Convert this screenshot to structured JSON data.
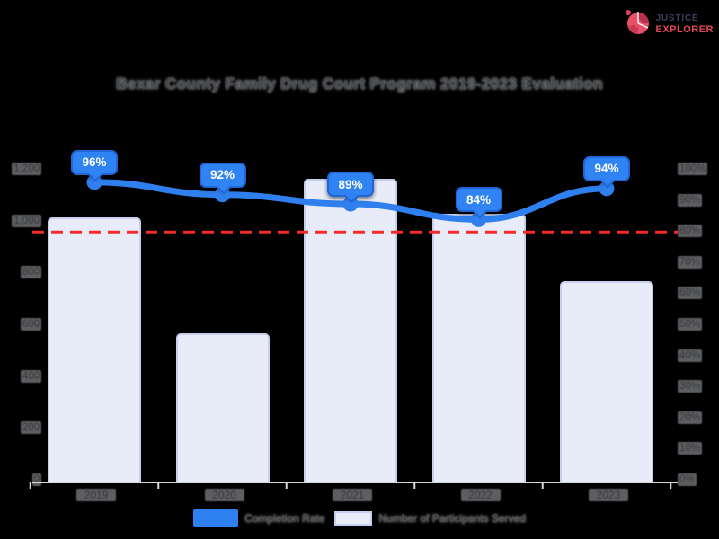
{
  "page": {
    "background": "#000000"
  },
  "logo": {
    "icon": "donut-chart-icon",
    "icon_color": "#e8506a",
    "icon_dark_color": "#b8324d",
    "line1": "JUSTICE",
    "line2": "EXPLORER",
    "line1_color": "#3a4060",
    "line2_color": "#e04858"
  },
  "chart_data": {
    "type": "combo",
    "title": "Bexar County Family Drug Court Program 2019-2023 Evaluation",
    "categories": [
      "2019",
      "2020",
      "2021",
      "2022",
      "2023"
    ],
    "series": [
      {
        "name": "Completion Rate",
        "type": "line",
        "axis": "right",
        "color": "#2f80ee",
        "values": [
          96,
          92,
          89,
          84,
          94
        ],
        "labels": [
          "96%",
          "92%",
          "89%",
          "84%",
          "94%"
        ]
      },
      {
        "name": "Number of Participants Served",
        "type": "bar",
        "axis": "left",
        "fill": "#e8ecf9",
        "border": "#c5d0ee",
        "values": [
          1015,
          570,
          1165,
          1030,
          770
        ]
      }
    ],
    "left_axis": {
      "min": 0,
      "max": 1200,
      "step": 200,
      "tick_labels": [
        "0",
        "200",
        "400",
        "600",
        "800",
        "1,000",
        "1,200"
      ]
    },
    "right_axis": {
      "min": 0,
      "max": 100,
      "step": 10,
      "suffix": "%"
    },
    "target_line": {
      "value": 80,
      "axis": "right",
      "color": "#f32b2b",
      "style": "dashed"
    },
    "legend_position": "bottom",
    "grid": false
  }
}
